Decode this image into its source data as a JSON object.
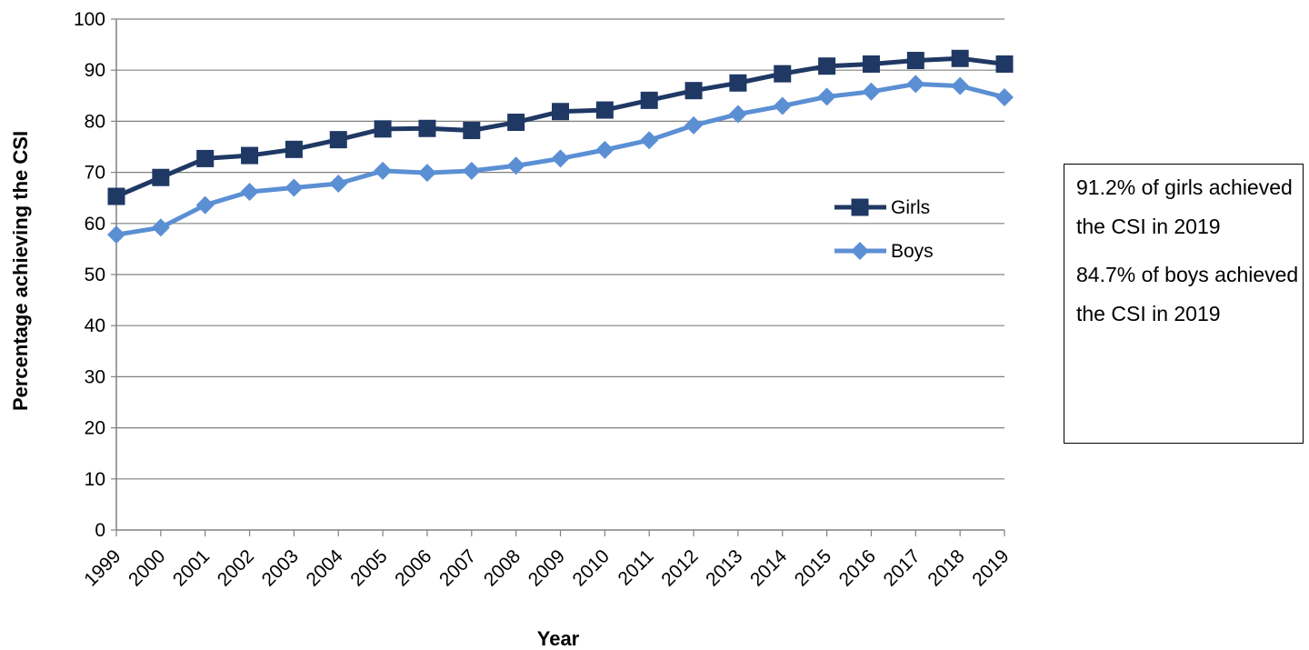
{
  "chart_data": {
    "type": "line",
    "title": "",
    "xlabel": "Year",
    "ylabel": "Percentage achieving the CSI",
    "categories": [
      "1999",
      "2000",
      "2001",
      "2002",
      "2003",
      "2004",
      "2005",
      "2006",
      "2007",
      "2008",
      "2009",
      "2010",
      "2011",
      "2012",
      "2013",
      "2014",
      "2015",
      "2016",
      "2017",
      "2018",
      "2019"
    ],
    "ylim": [
      0,
      100
    ],
    "yticks": [
      "0",
      "10",
      "20",
      "30",
      "40",
      "50",
      "60",
      "70",
      "80",
      "90",
      "100"
    ],
    "grid": true,
    "legend_position": "right, inside plot",
    "series": [
      {
        "name": "Girls",
        "marker": "square",
        "color": "#1f3864",
        "values": [
          65.3,
          69.0,
          72.7,
          73.3,
          74.5,
          76.4,
          78.5,
          78.6,
          78.2,
          79.8,
          81.9,
          82.2,
          84.1,
          86.0,
          87.5,
          89.3,
          90.8,
          91.2,
          91.9,
          92.3,
          91.2
        ]
      },
      {
        "name": "Boys",
        "marker": "diamond",
        "color": "#5b8fd4",
        "values": [
          57.8,
          59.2,
          63.6,
          66.2,
          67.0,
          67.8,
          70.3,
          69.9,
          70.3,
          71.3,
          72.7,
          74.4,
          76.3,
          79.2,
          81.4,
          83.0,
          84.8,
          85.8,
          87.3,
          86.9,
          84.7
        ]
      }
    ]
  },
  "annotation": {
    "girls_text": "91.2% of girls achieved the CSI in 2019",
    "boys_text": "84.7% of boys achieved the CSI in 2019"
  }
}
